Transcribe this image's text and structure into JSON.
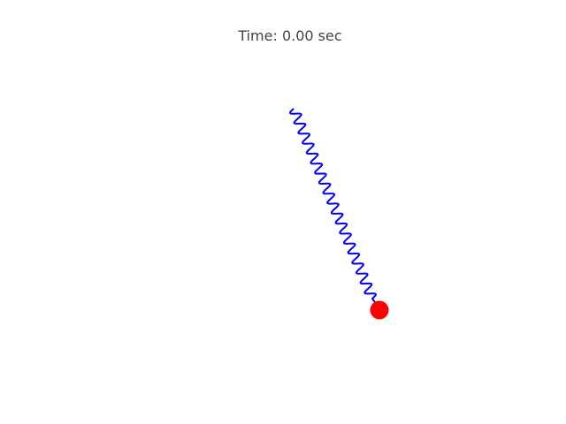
{
  "header": {
    "time_text": "Time: 0.00 sec"
  },
  "scene": {
    "spring_color": "#0000ff",
    "mass_color": "#ff0000",
    "corner_mark_color": "#eeeeee"
  }
}
